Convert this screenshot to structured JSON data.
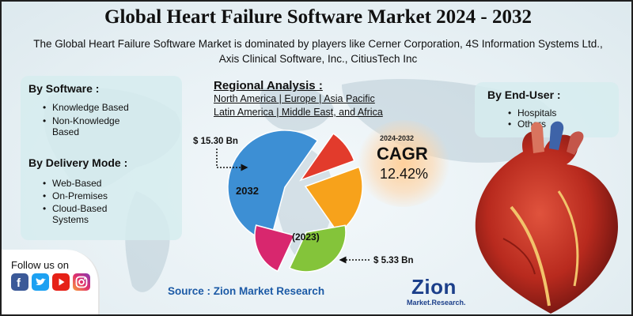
{
  "header": {
    "title": "Global Heart Failure Software Market 2024 - 2032",
    "subtitle": "The Global Heart Failure Software Market is dominated by players like Cerner Corporation, 4S Information Systems Ltd., Axis Clinical Software, Inc., CitiusTech Inc"
  },
  "left_card": {
    "software_heading": "By Software :",
    "software_items": [
      "Knowledge Based",
      "Non-Knowledge Based"
    ],
    "delivery_heading": "By Delivery Mode :",
    "delivery_items": [
      "Web-Based",
      "On-Premises",
      "Cloud-Based Systems"
    ]
  },
  "right_card": {
    "enduser_heading": "By End-User :",
    "enduser_items": [
      "Hospitals",
      "Others"
    ]
  },
  "regional": {
    "title": "Regional Analysis :",
    "line1": "North America | Europe | Asia Pacific",
    "line2": "Latin America | Middle East, and Africa"
  },
  "cagr": {
    "period": "2024-2032",
    "label": "CAGR",
    "value": "12.42%"
  },
  "chart_data": {
    "type": "pie",
    "series": [
      {
        "label": "2032",
        "value_label": "$ 15.30 Bn",
        "value": 15.3
      },
      {
        "label": "(2023)",
        "value_label": "$ 5.33 Bn",
        "value": 5.33
      }
    ],
    "slices_2032": [
      {
        "color": "#3d8fd4"
      },
      {
        "color": "#e23b2c"
      },
      {
        "color": "#f7a21b"
      }
    ],
    "slices_2023": [
      {
        "color": "#84c43a"
      },
      {
        "color": "#d8276e"
      }
    ]
  },
  "social": {
    "follow_label": "Follow us on",
    "icons": [
      "facebook-icon",
      "twitter-icon",
      "youtube-icon",
      "instagram-icon"
    ]
  },
  "footer": {
    "source": "Source : Zion Market Research",
    "logo_main": "Zion",
    "logo_sub": "Market.Research."
  },
  "colors": {
    "title": "#111111",
    "source_text": "#1c5aa6",
    "card_bg": "#d6ecee",
    "logo": "#1c3f8a"
  }
}
